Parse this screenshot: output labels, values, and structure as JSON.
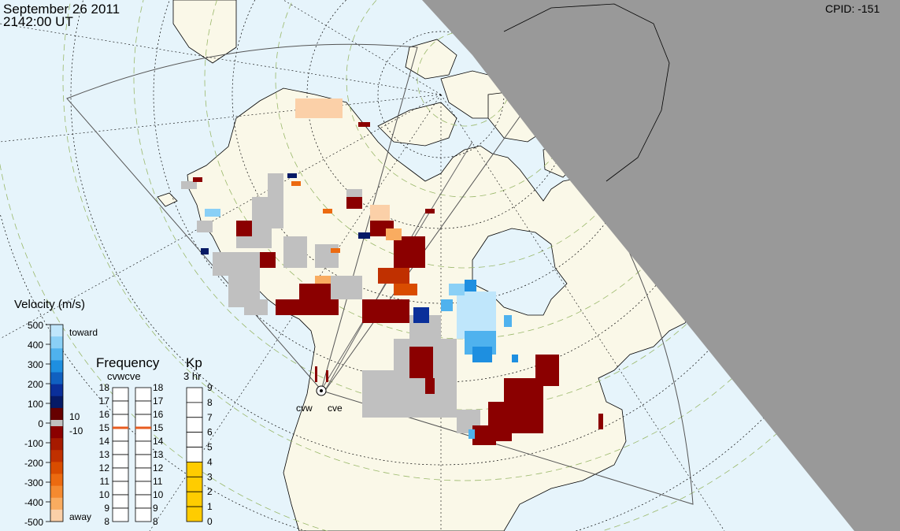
{
  "header": {
    "date": "September 26 2011",
    "time": "2142:00 UT",
    "cpid_label": "CPID:",
    "cpid_value": "-151"
  },
  "radars": [
    {
      "code": "cvw"
    },
    {
      "code": "cve"
    }
  ],
  "velocity_legend": {
    "title": "Velocity (m/s)",
    "ticks": [
      "500",
      "400",
      "300",
      "200",
      "100",
      "0",
      "-100",
      "-200",
      "-300",
      "-400",
      "-500"
    ],
    "toward_label": "toward",
    "away_label": "away",
    "ground_scatter_labels": [
      "10",
      "-10"
    ],
    "colors_top_to_bottom": [
      "#bfe6fb",
      "#8ad0f6",
      "#4fb2ee",
      "#1e8fe0",
      "#1060c0",
      "#0a2f9a",
      "#061a66",
      "#660000",
      "#8b0000",
      "#a61a00",
      "#c03000",
      "#d94c00",
      "#ec6a10",
      "#f58a30",
      "#f9ac60",
      "#fbd0a8"
    ]
  },
  "frequency_legend": {
    "title": "Frequency",
    "radars_label": "cvwcve",
    "ticks": [
      "18",
      "17",
      "16",
      "15",
      "14",
      "13",
      "12",
      "11",
      "10",
      "9",
      "8"
    ],
    "cvw_mhz": 15.0,
    "cve_mhz": 15.0,
    "marker_color": "#e85c20"
  },
  "kp_legend": {
    "title": "Kp",
    "subtitle": "3 hr",
    "ticks": [
      "9",
      "8",
      "7",
      "6",
      "5",
      "4",
      "3",
      "2",
      "1",
      "0"
    ],
    "value": 4,
    "fill_color": "#ffcc00"
  },
  "colors": {
    "ocean": "#e6f4fb",
    "land": "#faf8e8",
    "night_shade": "#999999",
    "ground_scatter": "#c0c0c0",
    "grid_green": "#9ab86a",
    "fov_outline": "#555555"
  }
}
